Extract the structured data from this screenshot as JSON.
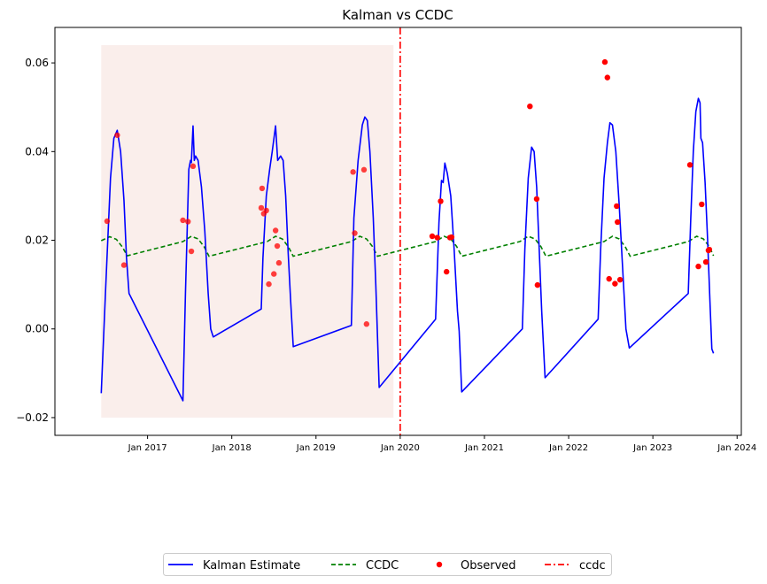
{
  "chart_data": {
    "type": "line",
    "title": "Kalman vs CCDC",
    "xlabel": "",
    "ylabel": "",
    "ylim": [
      -0.024,
      0.068
    ],
    "xlim": [
      2015.9,
      2024.05
    ],
    "grid": false,
    "legend_position": "bottom-center",
    "yticks": [
      {
        "value": -0.02,
        "label": "−0.02"
      },
      {
        "value": 0.0,
        "label": "0.00"
      },
      {
        "value": 0.02,
        "label": "0.02"
      },
      {
        "value": 0.04,
        "label": "0.04"
      },
      {
        "value": 0.06,
        "label": "0.06"
      }
    ],
    "xticks": [
      {
        "value": 2017.0,
        "label": "Jan 2017"
      },
      {
        "value": 2018.0,
        "label": "Jan 2018"
      },
      {
        "value": 2019.0,
        "label": "Jan 2019"
      },
      {
        "value": 2020.0,
        "label": "Jan 2020"
      },
      {
        "value": 2021.0,
        "label": "Jan 2021"
      },
      {
        "value": 2022.0,
        "label": "Jan 2022"
      },
      {
        "value": 2023.0,
        "label": "Jan 2023"
      },
      {
        "value": 2024.0,
        "label": "Jan 2024"
      }
    ],
    "training_window": {
      "x": [
        2016.45,
        2019.92
      ],
      "y": [
        -0.02,
        0.064
      ],
      "color": "#f7e3dd"
    },
    "break_date": 2020.0,
    "kalman": {
      "color": "#0000ff",
      "points": [
        [
          2016.45,
          -0.0145
        ],
        [
          2016.5,
          0.008
        ],
        [
          2016.56,
          0.034
        ],
        [
          2016.6,
          0.043
        ],
        [
          2016.64,
          0.0448
        ],
        [
          2016.68,
          0.04
        ],
        [
          2016.72,
          0.029
        ],
        [
          2016.75,
          0.016
        ],
        [
          2016.78,
          0.008
        ],
        [
          2017.42,
          -0.0162
        ],
        [
          2017.45,
          0.008
        ],
        [
          2017.49,
          0.036
        ],
        [
          2017.51,
          0.038
        ],
        [
          2017.52,
          0.0375
        ],
        [
          2017.54,
          0.0458
        ],
        [
          2017.555,
          0.038
        ],
        [
          2017.57,
          0.039
        ],
        [
          2017.6,
          0.038
        ],
        [
          2017.64,
          0.032
        ],
        [
          2017.68,
          0.022
        ],
        [
          2017.72,
          0.008
        ],
        [
          2017.75,
          0.0
        ],
        [
          2017.78,
          -0.0018
        ],
        [
          2018.35,
          0.0045
        ],
        [
          2018.37,
          0.016
        ],
        [
          2018.41,
          0.03
        ],
        [
          2018.45,
          0.036
        ],
        [
          2018.48,
          0.04
        ],
        [
          2018.52,
          0.0458
        ],
        [
          2018.545,
          0.038
        ],
        [
          2018.58,
          0.039
        ],
        [
          2018.61,
          0.038
        ],
        [
          2018.64,
          0.03
        ],
        [
          2018.67,
          0.017
        ],
        [
          2018.7,
          0.006
        ],
        [
          2018.73,
          -0.004
        ],
        [
          2019.42,
          0.0008
        ],
        [
          2019.45,
          0.025
        ],
        [
          2019.5,
          0.038
        ],
        [
          2019.55,
          0.046
        ],
        [
          2019.58,
          0.0478
        ],
        [
          2019.61,
          0.047
        ],
        [
          2019.64,
          0.04
        ],
        [
          2019.68,
          0.025
        ],
        [
          2019.71,
          0.01
        ],
        [
          2019.75,
          -0.0132
        ],
        [
          2020.42,
          0.0022
        ],
        [
          2020.46,
          0.024
        ],
        [
          2020.49,
          0.0335
        ],
        [
          2020.51,
          0.033
        ],
        [
          2020.53,
          0.0374
        ],
        [
          2020.56,
          0.035
        ],
        [
          2020.6,
          0.03
        ],
        [
          2020.64,
          0.018
        ],
        [
          2020.68,
          0.004
        ],
        [
          2020.7,
          -0.0005
        ],
        [
          2020.73,
          -0.0142
        ],
        [
          2021.45,
          0.0
        ],
        [
          2021.48,
          0.018
        ],
        [
          2021.52,
          0.034
        ],
        [
          2021.56,
          0.041
        ],
        [
          2021.59,
          0.04
        ],
        [
          2021.62,
          0.032
        ],
        [
          2021.65,
          0.018
        ],
        [
          2021.68,
          0.004
        ],
        [
          2021.72,
          -0.011
        ],
        [
          2022.35,
          0.0022
        ],
        [
          2022.38,
          0.018
        ],
        [
          2022.42,
          0.034
        ],
        [
          2022.46,
          0.042
        ],
        [
          2022.49,
          0.0465
        ],
        [
          2022.52,
          0.046
        ],
        [
          2022.56,
          0.04
        ],
        [
          2022.6,
          0.028
        ],
        [
          2022.64,
          0.014
        ],
        [
          2022.68,
          0.0
        ],
        [
          2022.72,
          -0.0043
        ],
        [
          2023.42,
          0.008
        ],
        [
          2023.45,
          0.025
        ],
        [
          2023.48,
          0.04
        ],
        [
          2023.51,
          0.049
        ],
        [
          2023.54,
          0.052
        ],
        [
          2023.56,
          0.051
        ],
        [
          2023.57,
          0.043
        ],
        [
          2023.59,
          0.042
        ],
        [
          2023.62,
          0.033
        ],
        [
          2023.65,
          0.02
        ],
        [
          2023.68,
          0.005
        ],
        [
          2023.7,
          -0.0045
        ],
        [
          2023.72,
          -0.0055
        ]
      ]
    },
    "ccdc": {
      "color": "#008000",
      "points": [
        [
          2016.45,
          0.0199
        ],
        [
          2016.55,
          0.0208
        ],
        [
          2016.63,
          0.0202
        ],
        [
          2016.7,
          0.0185
        ],
        [
          2016.76,
          0.0165
        ],
        [
          2017.42,
          0.0197
        ],
        [
          2017.52,
          0.0209
        ],
        [
          2017.6,
          0.0203
        ],
        [
          2017.67,
          0.0186
        ],
        [
          2017.73,
          0.0164
        ],
        [
          2018.42,
          0.0197
        ],
        [
          2018.52,
          0.0209
        ],
        [
          2018.6,
          0.0203
        ],
        [
          2018.67,
          0.0186
        ],
        [
          2018.73,
          0.0164
        ],
        [
          2019.42,
          0.0197
        ],
        [
          2019.52,
          0.0209
        ],
        [
          2019.6,
          0.0203
        ],
        [
          2019.67,
          0.0186
        ],
        [
          2019.73,
          0.0164
        ],
        [
          2020.42,
          0.0197
        ],
        [
          2020.52,
          0.0209
        ],
        [
          2020.6,
          0.0203
        ],
        [
          2020.67,
          0.0186
        ],
        [
          2020.73,
          0.0164
        ],
        [
          2021.42,
          0.0197
        ],
        [
          2021.52,
          0.0209
        ],
        [
          2021.6,
          0.0203
        ],
        [
          2021.67,
          0.0186
        ],
        [
          2021.73,
          0.0164
        ],
        [
          2022.42,
          0.0197
        ],
        [
          2022.52,
          0.0209
        ],
        [
          2022.6,
          0.0203
        ],
        [
          2022.67,
          0.0186
        ],
        [
          2022.73,
          0.0164
        ],
        [
          2023.42,
          0.0197
        ],
        [
          2023.52,
          0.0209
        ],
        [
          2023.6,
          0.0203
        ],
        [
          2023.67,
          0.0186
        ],
        [
          2023.72,
          0.0165
        ]
      ]
    },
    "observed": {
      "color": "#ff0000",
      "points": [
        [
          2016.52,
          0.0243
        ],
        [
          2016.64,
          0.0437
        ],
        [
          2016.72,
          0.0144
        ],
        [
          2017.42,
          0.0245
        ],
        [
          2017.48,
          0.0242
        ],
        [
          2017.52,
          0.0175
        ],
        [
          2017.54,
          0.0367
        ],
        [
          2018.35,
          0.0273
        ],
        [
          2018.36,
          0.0317
        ],
        [
          2018.38,
          0.026
        ],
        [
          2018.41,
          0.0267
        ],
        [
          2018.44,
          0.0101
        ],
        [
          2018.5,
          0.0124
        ],
        [
          2018.52,
          0.0222
        ],
        [
          2018.54,
          0.0187
        ],
        [
          2018.56,
          0.0149
        ],
        [
          2019.44,
          0.0354
        ],
        [
          2019.46,
          0.0216
        ],
        [
          2019.57,
          0.0359
        ],
        [
          2019.6,
          0.0011
        ],
        [
          2020.38,
          0.0209
        ],
        [
          2020.44,
          0.0206
        ],
        [
          2020.48,
          0.0288
        ],
        [
          2020.55,
          0.0129
        ],
        [
          2020.59,
          0.0206
        ],
        [
          2020.61,
          0.0207
        ],
        [
          2021.54,
          0.0502
        ],
        [
          2021.62,
          0.0293
        ],
        [
          2021.63,
          0.0099
        ],
        [
          2022.43,
          0.0602
        ],
        [
          2022.46,
          0.0567
        ],
        [
          2022.48,
          0.0113
        ],
        [
          2022.55,
          0.0102
        ],
        [
          2022.57,
          0.0277
        ],
        [
          2022.58,
          0.0241
        ],
        [
          2022.61,
          0.0111
        ],
        [
          2023.44,
          0.037
        ],
        [
          2023.54,
          0.0141
        ],
        [
          2023.58,
          0.0281
        ],
        [
          2023.63,
          0.0151
        ],
        [
          2023.66,
          0.0177
        ],
        [
          2023.67,
          0.0179
        ]
      ]
    },
    "legend": [
      {
        "label": "Kalman Estimate",
        "style": "solid",
        "color": "#0000ff"
      },
      {
        "label": "CCDC",
        "style": "dashed",
        "color": "#008000"
      },
      {
        "label": "Observed",
        "style": "dot",
        "color": "#ff0000"
      },
      {
        "label": "ccdc",
        "style": "dashdot",
        "color": "#ff0000"
      }
    ]
  }
}
